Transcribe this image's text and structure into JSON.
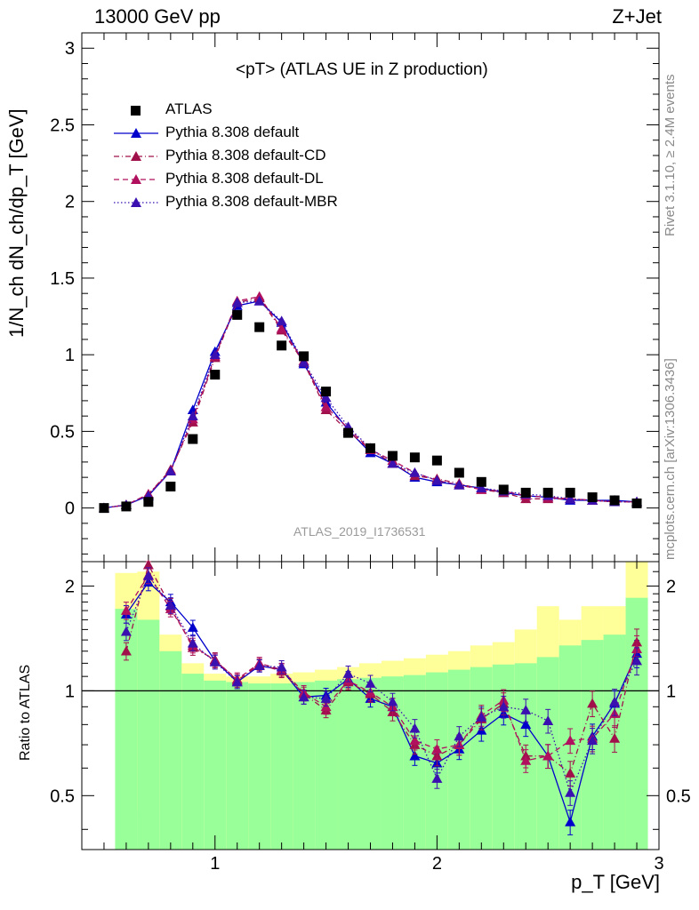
{
  "header": {
    "left": "13000 GeV pp",
    "right": "Z+Jet"
  },
  "side": {
    "top": "Rivet 3.1.10, ≥ 2.4M events",
    "bottom": "mcplots.cern.ch [arXiv:1306.3436]"
  },
  "watermark": "ATLAS_2019_I1736531",
  "colors": {
    "data": "#000000",
    "default": "#0000cc",
    "cd": "#a0104a",
    "dl": "#b0105e",
    "mbr": "#3a10b0",
    "band_inner": "#99ff99",
    "band_outer": "#ffff99"
  },
  "chart_data": [
    {
      "type": "scatter",
      "title": "<pT> (ATLAS UE in Z production)",
      "ylabel": "1/N_ch dN_ch/dp_T [GeV]",
      "xlim": [
        0.4,
        3.0
      ],
      "ylim": [
        -0.35,
        3.1
      ],
      "yticks": [
        0,
        0.5,
        1,
        1.5,
        2,
        2.5,
        3
      ],
      "ytick_labels": [
        "0",
        "0.5",
        "1",
        "1.5",
        "2",
        "2.5",
        "3"
      ],
      "legend_position": "top-left",
      "x": [
        0.5,
        0.6,
        0.7,
        0.8,
        0.9,
        1.0,
        1.1,
        1.2,
        1.3,
        1.4,
        1.5,
        1.6,
        1.7,
        1.8,
        1.9,
        2.0,
        2.1,
        2.2,
        2.3,
        2.4,
        2.5,
        2.6,
        2.7,
        2.8,
        2.9
      ],
      "series": [
        {
          "name": "ATLAS",
          "key": "data",
          "style": "marker",
          "values": [
            0.0,
            0.01,
            0.04,
            0.14,
            0.45,
            0.87,
            1.26,
            1.18,
            1.06,
            0.99,
            0.76,
            0.49,
            0.39,
            0.34,
            0.33,
            0.31,
            0.23,
            0.17,
            0.12,
            0.1,
            0.1,
            0.1,
            0.07,
            0.05,
            0.03
          ]
        },
        {
          "name": "Pythia 8.308 default",
          "key": "default",
          "style": "solid",
          "values": [
            0.0,
            0.02,
            0.08,
            0.24,
            0.64,
            1.02,
            1.32,
            1.35,
            1.21,
            0.94,
            0.69,
            0.51,
            0.36,
            0.29,
            0.2,
            0.17,
            0.15,
            0.13,
            0.1,
            0.08,
            0.07,
            0.05,
            0.05,
            0.05,
            0.04
          ]
        },
        {
          "name": "Pythia 8.308 default-CD",
          "key": "cd",
          "style": "dashdot",
          "values": [
            0.0,
            0.02,
            0.09,
            0.25,
            0.56,
            0.98,
            1.34,
            1.37,
            1.16,
            0.95,
            0.64,
            0.5,
            0.38,
            0.29,
            0.21,
            0.19,
            0.16,
            0.12,
            0.1,
            0.06,
            0.06,
            0.06,
            0.05,
            0.04,
            0.04
          ]
        },
        {
          "name": "Pythia 8.308 default-DL",
          "key": "dl",
          "style": "dashed",
          "values": [
            0.0,
            0.02,
            0.09,
            0.24,
            0.58,
            0.99,
            1.35,
            1.38,
            1.17,
            0.96,
            0.66,
            0.52,
            0.38,
            0.31,
            0.23,
            0.18,
            0.15,
            0.12,
            0.11,
            0.08,
            0.07,
            0.06,
            0.05,
            0.04,
            0.04
          ]
        },
        {
          "name": "Pythia 8.308 default-MBR",
          "key": "mbr",
          "style": "dotted",
          "values": [
            0.0,
            0.02,
            0.08,
            0.24,
            0.6,
            1.0,
            1.34,
            1.35,
            1.22,
            0.95,
            0.72,
            0.53,
            0.39,
            0.29,
            0.23,
            0.18,
            0.15,
            0.13,
            0.11,
            0.09,
            0.08,
            0.06,
            0.05,
            0.04,
            0.04
          ]
        }
      ]
    },
    {
      "type": "line",
      "title": "",
      "ylabel": "Ratio to ATLAS",
      "xlabel": "p_T [GeV]",
      "xlim": [
        0.4,
        3.0
      ],
      "ylim": [
        0.35,
        2.35
      ],
      "yticks": [
        0.5,
        1,
        2
      ],
      "ytick_labels": [
        "0.5",
        "1",
        "2"
      ],
      "xticks": [
        1,
        2,
        3
      ],
      "xtick_labels": [
        "1",
        "2",
        "3"
      ],
      "log_y": true,
      "reference_line": 1,
      "bin_edges": [
        0.55,
        0.65,
        0.75,
        0.85,
        0.95,
        1.05,
        1.15,
        1.25,
        1.35,
        1.45,
        1.55,
        1.65,
        1.75,
        1.85,
        1.95,
        2.05,
        2.15,
        2.25,
        2.35,
        2.45,
        2.55,
        2.65,
        2.75,
        2.85,
        2.95
      ],
      "band_inner_upper": [
        1.72,
        1.6,
        1.3,
        1.12,
        1.07,
        1.06,
        1.05,
        1.05,
        1.06,
        1.07,
        1.08,
        1.09,
        1.1,
        1.11,
        1.13,
        1.15,
        1.17,
        1.19,
        1.2,
        1.25,
        1.35,
        1.4,
        1.45,
        1.85
      ],
      "band_inner_lower": [
        0.35,
        0.35,
        0.35,
        0.35,
        0.35,
        0.35,
        0.35,
        0.35,
        0.35,
        0.35,
        0.35,
        0.35,
        0.35,
        0.35,
        0.35,
        0.35,
        0.35,
        0.35,
        0.35,
        0.35,
        0.35,
        0.35,
        0.35,
        0.35
      ],
      "band_outer_upper": [
        2.18,
        2.2,
        1.45,
        1.2,
        1.12,
        1.1,
        1.1,
        1.12,
        1.13,
        1.15,
        1.17,
        1.2,
        1.22,
        1.24,
        1.27,
        1.3,
        1.35,
        1.38,
        1.5,
        1.75,
        1.6,
        1.75,
        1.75,
        2.35
      ],
      "band_outer_lower": [
        0.35,
        0.45,
        0.35,
        0.35,
        0.35,
        0.35,
        0.35,
        0.35,
        0.35,
        0.35,
        0.35,
        0.35,
        0.35,
        0.35,
        0.35,
        0.35,
        0.35,
        0.35,
        0.35,
        0.35,
        0.35,
        0.35,
        0.35,
        0.35
      ],
      "band_white_lower": [
        0.35,
        0.35,
        0.6,
        0.9,
        0.92,
        0.93,
        0.93,
        0.93,
        0.92,
        0.92,
        0.91,
        0.89,
        0.87,
        0.86,
        0.84,
        0.82,
        0.8,
        0.78,
        0.74,
        0.35,
        0.35,
        0.35,
        0.62,
        0.35
      ],
      "x": [
        0.6,
        0.7,
        0.8,
        0.9,
        1.0,
        1.1,
        1.2,
        1.3,
        1.4,
        1.5,
        1.6,
        1.7,
        1.8,
        1.9,
        2.0,
        2.1,
        2.2,
        2.3,
        2.4,
        2.5,
        2.6,
        2.7,
        2.8,
        2.9
      ],
      "series": [
        {
          "name": "Pythia 8.308 default",
          "key": "default",
          "style": "solid",
          "values": [
            1.66,
            2.05,
            1.8,
            1.52,
            1.22,
            1.06,
            1.18,
            1.15,
            0.96,
            0.97,
            1.08,
            0.95,
            0.9,
            0.65,
            0.62,
            0.68,
            0.77,
            0.86,
            0.8,
            0.65,
            0.42,
            0.74,
            0.92,
            1.28
          ]
        },
        {
          "name": "Pythia 8.308 default-CD",
          "key": "cd",
          "style": "dashdot",
          "values": [
            1.3,
            2.3,
            1.75,
            1.33,
            1.23,
            1.07,
            1.19,
            1.14,
            0.98,
            0.88,
            1.06,
            0.98,
            0.87,
            0.7,
            0.65,
            0.7,
            0.83,
            0.92,
            0.65,
            0.65,
            0.58,
            0.92,
            0.73,
            1.38
          ]
        },
        {
          "name": "Pythia 8.308 default-DL",
          "key": "dl",
          "style": "dashed",
          "values": [
            1.7,
            2.15,
            1.72,
            1.35,
            1.22,
            1.08,
            1.2,
            1.15,
            0.99,
            0.9,
            1.07,
            0.99,
            0.9,
            0.72,
            0.68,
            0.7,
            0.85,
            0.94,
            0.63,
            0.65,
            0.72,
            0.73,
            0.86,
            1.32
          ]
        },
        {
          "name": "Pythia 8.308 default-MBR",
          "key": "mbr",
          "style": "dotted",
          "values": [
            1.48,
            2.14,
            1.76,
            1.37,
            1.21,
            1.06,
            1.18,
            1.17,
            0.96,
            0.95,
            1.12,
            1.05,
            0.93,
            0.78,
            0.56,
            0.74,
            0.84,
            0.9,
            0.88,
            0.82,
            0.51,
            0.72,
            0.93,
            1.22
          ]
        }
      ]
    }
  ]
}
